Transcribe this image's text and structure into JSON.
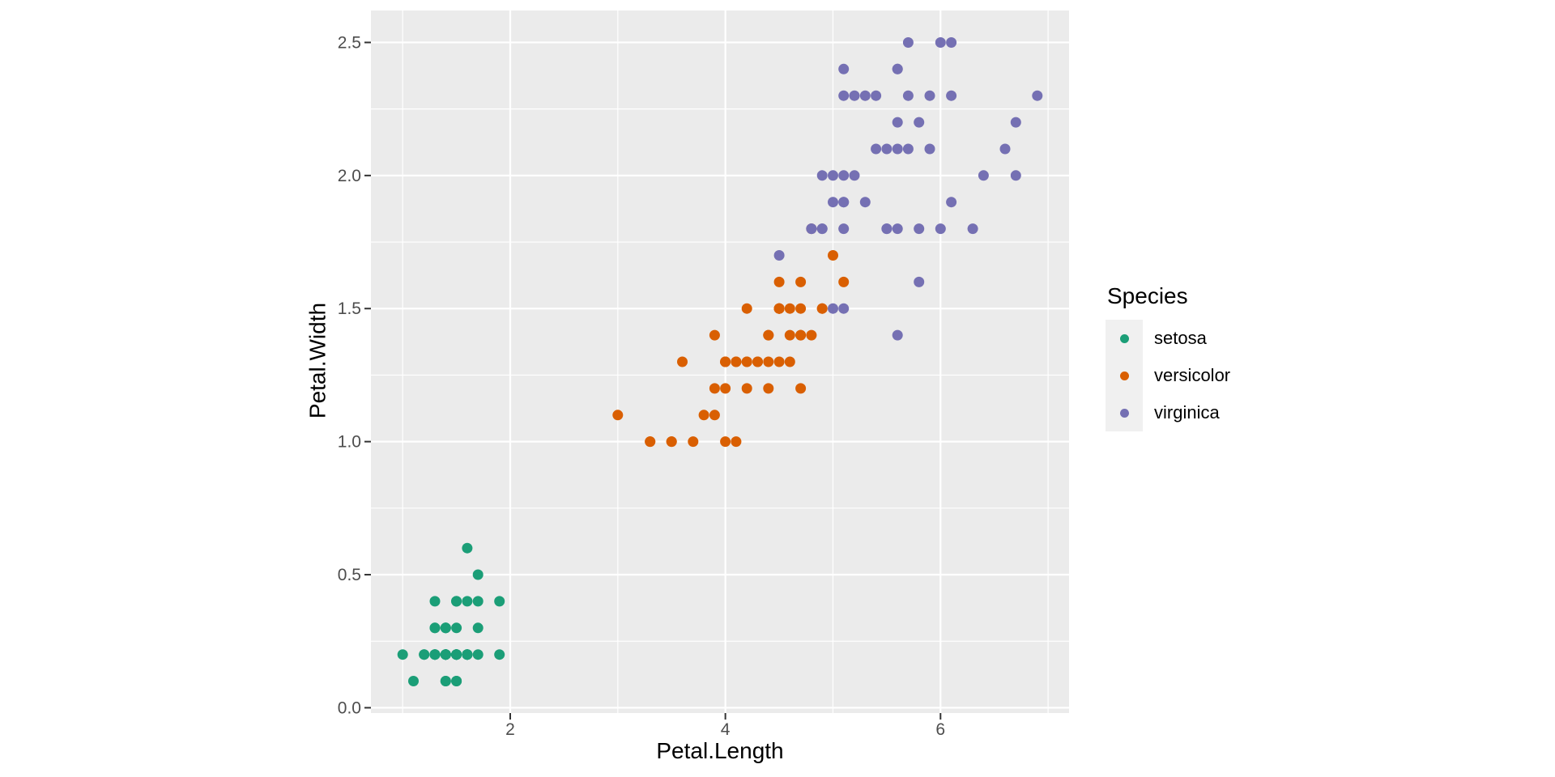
{
  "figure": {
    "background": "#FFFFFF"
  },
  "chart_data": {
    "type": "scatter",
    "title": "",
    "xlabel": "Petal.Length",
    "ylabel": "Petal.Width",
    "xlim": [
      0.705,
      7.195
    ],
    "ylim": [
      -0.02,
      2.62
    ],
    "x_major_ticks": [
      2,
      4,
      6
    ],
    "x_minor_ticks": [
      1,
      3,
      5,
      7
    ],
    "y_major_ticks": [
      0.0,
      0.5,
      1.0,
      1.5,
      2.0,
      2.5
    ],
    "y_minor_ticks": [
      0.25,
      0.75,
      1.25,
      1.75,
      2.25
    ],
    "x_tick_labels": [
      "2",
      "4",
      "6"
    ],
    "y_tick_labels": [
      "0.0",
      "0.5",
      "1.0",
      "1.5",
      "2.0",
      "2.5"
    ],
    "grid": "major+minor white on gray panel",
    "legend": {
      "title": "Species",
      "position": "right",
      "entries": [
        {
          "label": "setosa",
          "color": "#1B9E77"
        },
        {
          "label": "versicolor",
          "color": "#D95F02"
        },
        {
          "label": "virginica",
          "color": "#7570B3"
        }
      ]
    },
    "series": [
      {
        "name": "setosa",
        "color": "#1B9E77",
        "points": [
          [
            1.4,
            0.2
          ],
          [
            1.4,
            0.2
          ],
          [
            1.3,
            0.2
          ],
          [
            1.5,
            0.2
          ],
          [
            1.4,
            0.2
          ],
          [
            1.7,
            0.4
          ],
          [
            1.4,
            0.3
          ],
          [
            1.5,
            0.2
          ],
          [
            1.4,
            0.2
          ],
          [
            1.5,
            0.1
          ],
          [
            1.5,
            0.2
          ],
          [
            1.6,
            0.2
          ],
          [
            1.4,
            0.1
          ],
          [
            1.1,
            0.1
          ],
          [
            1.2,
            0.2
          ],
          [
            1.5,
            0.4
          ],
          [
            1.3,
            0.4
          ],
          [
            1.4,
            0.3
          ],
          [
            1.7,
            0.3
          ],
          [
            1.5,
            0.3
          ],
          [
            1.7,
            0.2
          ],
          [
            1.5,
            0.4
          ],
          [
            1.0,
            0.2
          ],
          [
            1.7,
            0.5
          ],
          [
            1.9,
            0.2
          ],
          [
            1.6,
            0.2
          ],
          [
            1.6,
            0.4
          ],
          [
            1.5,
            0.2
          ],
          [
            1.4,
            0.2
          ],
          [
            1.6,
            0.2
          ],
          [
            1.6,
            0.2
          ],
          [
            1.5,
            0.4
          ],
          [
            1.5,
            0.1
          ],
          [
            1.4,
            0.2
          ],
          [
            1.5,
            0.2
          ],
          [
            1.2,
            0.2
          ],
          [
            1.3,
            0.2
          ],
          [
            1.4,
            0.1
          ],
          [
            1.3,
            0.2
          ],
          [
            1.5,
            0.2
          ],
          [
            1.3,
            0.3
          ],
          [
            1.3,
            0.3
          ],
          [
            1.3,
            0.2
          ],
          [
            1.6,
            0.6
          ],
          [
            1.9,
            0.4
          ],
          [
            1.4,
            0.3
          ],
          [
            1.6,
            0.2
          ],
          [
            1.4,
            0.2
          ],
          [
            1.5,
            0.2
          ],
          [
            1.4,
            0.2
          ]
        ]
      },
      {
        "name": "versicolor",
        "color": "#D95F02",
        "points": [
          [
            4.7,
            1.4
          ],
          [
            4.5,
            1.5
          ],
          [
            4.9,
            1.5
          ],
          [
            4.0,
            1.3
          ],
          [
            4.6,
            1.5
          ],
          [
            4.5,
            1.3
          ],
          [
            4.7,
            1.6
          ],
          [
            3.3,
            1.0
          ],
          [
            4.6,
            1.3
          ],
          [
            3.9,
            1.4
          ],
          [
            3.5,
            1.0
          ],
          [
            4.2,
            1.5
          ],
          [
            4.0,
            1.0
          ],
          [
            4.7,
            1.4
          ],
          [
            3.6,
            1.3
          ],
          [
            4.4,
            1.4
          ],
          [
            4.5,
            1.5
          ],
          [
            4.1,
            1.0
          ],
          [
            4.5,
            1.5
          ],
          [
            3.9,
            1.1
          ],
          [
            4.8,
            1.8
          ],
          [
            4.0,
            1.3
          ],
          [
            4.9,
            1.5
          ],
          [
            4.7,
            1.2
          ],
          [
            4.3,
            1.3
          ],
          [
            4.4,
            1.4
          ],
          [
            4.8,
            1.4
          ],
          [
            5.0,
            1.7
          ],
          [
            4.5,
            1.5
          ],
          [
            3.5,
            1.0
          ],
          [
            3.8,
            1.1
          ],
          [
            3.7,
            1.0
          ],
          [
            3.9,
            1.2
          ],
          [
            5.1,
            1.6
          ],
          [
            4.5,
            1.5
          ],
          [
            4.5,
            1.6
          ],
          [
            4.7,
            1.5
          ],
          [
            4.4,
            1.3
          ],
          [
            4.1,
            1.3
          ],
          [
            4.0,
            1.3
          ],
          [
            4.4,
            1.2
          ],
          [
            4.6,
            1.4
          ],
          [
            4.0,
            1.2
          ],
          [
            3.3,
            1.0
          ],
          [
            4.2,
            1.3
          ],
          [
            4.2,
            1.2
          ],
          [
            4.2,
            1.3
          ],
          [
            4.3,
            1.3
          ],
          [
            3.0,
            1.1
          ],
          [
            4.1,
            1.3
          ]
        ]
      },
      {
        "name": "virginica",
        "color": "#7570B3",
        "points": [
          [
            6.0,
            2.5
          ],
          [
            5.1,
            1.9
          ],
          [
            5.9,
            2.1
          ],
          [
            5.6,
            1.8
          ],
          [
            5.8,
            2.2
          ],
          [
            6.6,
            2.1
          ],
          [
            4.5,
            1.7
          ],
          [
            6.3,
            1.8
          ],
          [
            5.8,
            1.8
          ],
          [
            6.1,
            2.5
          ],
          [
            5.1,
            2.0
          ],
          [
            5.3,
            1.9
          ],
          [
            5.5,
            2.1
          ],
          [
            5.0,
            2.0
          ],
          [
            5.1,
            2.4
          ],
          [
            5.3,
            2.3
          ],
          [
            5.5,
            1.8
          ],
          [
            6.7,
            2.2
          ],
          [
            6.9,
            2.3
          ],
          [
            5.0,
            1.5
          ],
          [
            5.7,
            2.3
          ],
          [
            4.9,
            2.0
          ],
          [
            6.7,
            2.0
          ],
          [
            4.9,
            1.8
          ],
          [
            5.7,
            2.1
          ],
          [
            6.0,
            1.8
          ],
          [
            4.8,
            1.8
          ],
          [
            4.9,
            1.8
          ],
          [
            5.6,
            2.1
          ],
          [
            5.8,
            1.6
          ],
          [
            6.1,
            1.9
          ],
          [
            6.4,
            2.0
          ],
          [
            5.6,
            2.2
          ],
          [
            5.1,
            1.5
          ],
          [
            5.6,
            1.4
          ],
          [
            6.1,
            2.3
          ],
          [
            5.6,
            2.4
          ],
          [
            5.5,
            1.8
          ],
          [
            4.8,
            1.8
          ],
          [
            5.4,
            2.1
          ],
          [
            5.6,
            2.4
          ],
          [
            5.1,
            2.3
          ],
          [
            5.1,
            1.9
          ],
          [
            5.9,
            2.3
          ],
          [
            5.7,
            2.5
          ],
          [
            5.2,
            2.3
          ],
          [
            5.0,
            1.9
          ],
          [
            5.2,
            2.0
          ],
          [
            5.4,
            2.3
          ],
          [
            5.1,
            1.8
          ]
        ]
      }
    ]
  },
  "style": {
    "panel_fill": "#EBEBEB",
    "grid_color": "#FFFFFF",
    "tick_mark_color": "#333333",
    "tick_label_color": "#4D4D4D",
    "axis_title_color": "#000000",
    "legend_key_fill": "#F0F0F0",
    "point_radius": 6.5,
    "legend_dot_radius": 5.5
  }
}
